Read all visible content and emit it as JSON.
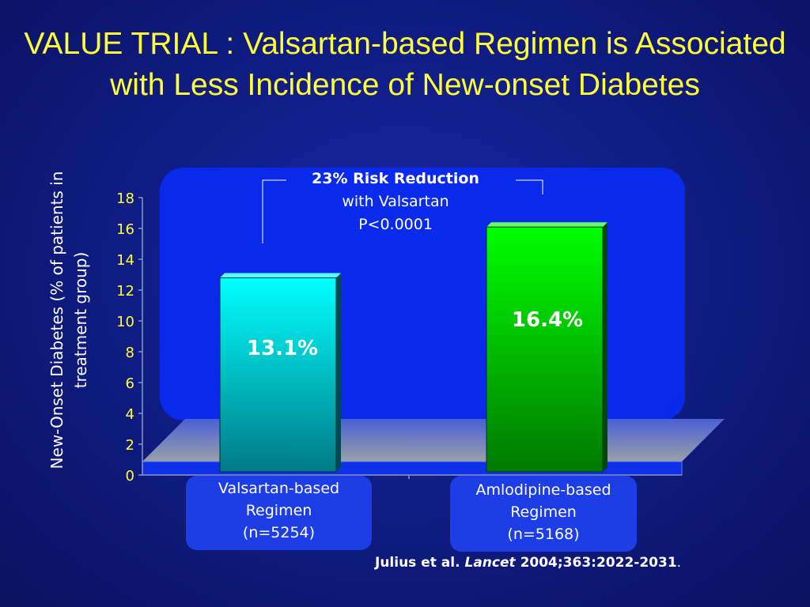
{
  "slide": {
    "title": "VALUE TRIAL : Valsartan-based Regimen is Associated with Less Incidence of New-onset Diabetes"
  },
  "annotation": {
    "line1": "23% Risk Reduction",
    "line2": "with Valsartan",
    "line3": "P<0.0001"
  },
  "citation": {
    "author": "Julius et al",
    "dot": ".",
    "journal": "Lancet",
    "ref": "2004;363:2022-2031",
    "end": "."
  },
  "colors": {
    "title": "#ffff33",
    "tick_labels": "#ffff33",
    "bar_valsartan": "#00ffff",
    "bar_amlodipine": "#00ff00",
    "category_box": "#1d3ee6"
  },
  "chart_data": {
    "type": "bar",
    "categories": [
      {
        "line1": "Valsartan-based",
        "line2": "Regimen",
        "line3": "(n=5254)"
      },
      {
        "line1": "Amlodipine-based",
        "line2": "Regimen",
        "line3": "(n=5168)"
      }
    ],
    "values": [
      13.1,
      16.4
    ],
    "data_labels": [
      "13.1%",
      "16.4%"
    ],
    "ylabel": "New-Onset Diabetes (% of patients in treatment group)",
    "ylim": [
      0,
      18
    ],
    "yticks": [
      0,
      2,
      4,
      6,
      8,
      10,
      12,
      14,
      16,
      18
    ],
    "grid": false,
    "legend": "none"
  }
}
